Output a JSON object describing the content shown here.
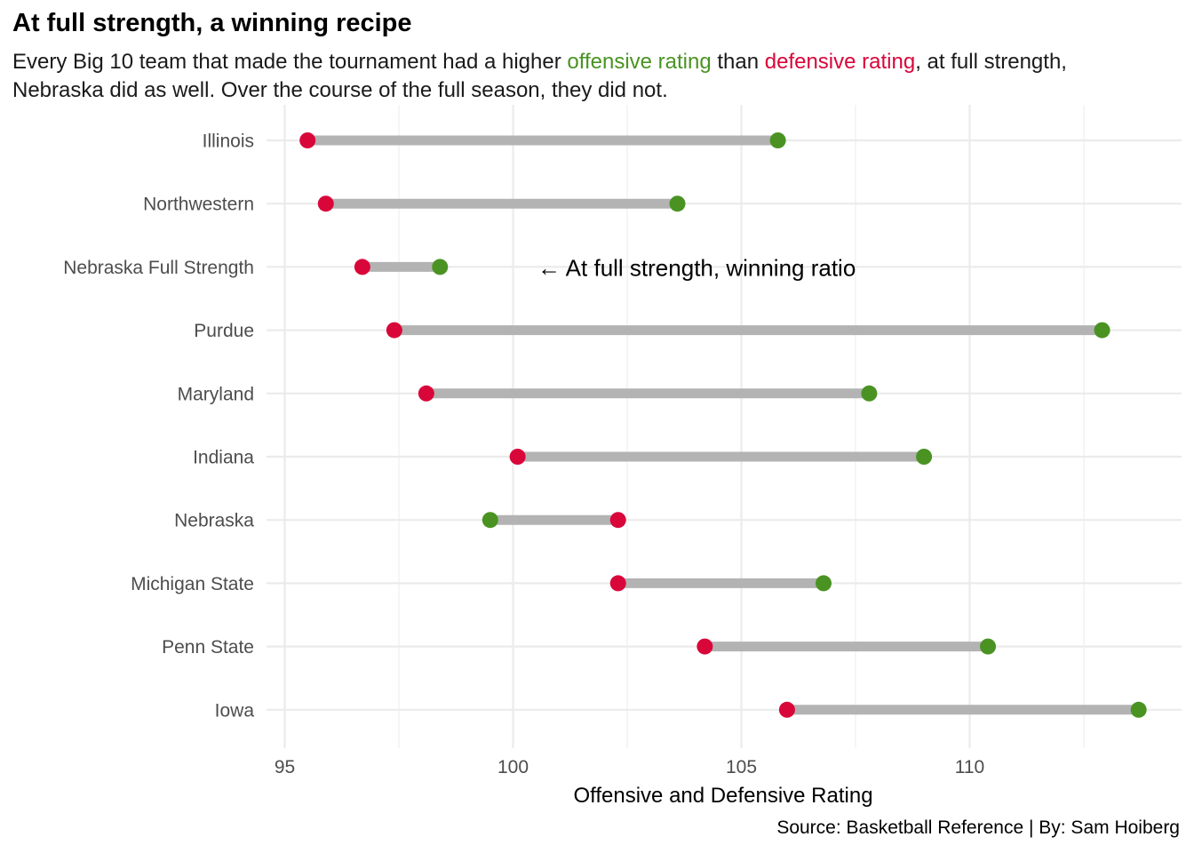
{
  "title": "At full strength, a winning recipe",
  "subtitle": {
    "part1": "Every Big 10 team that made the tournament had a higher ",
    "offensive": "offensive rating",
    "part2": " than ",
    "defensive": "defensive rating",
    "part3": ", at full strength, Nebraska did as well. Over the course of the full season, they did not."
  },
  "caption": "Source: Basketball Reference | By: Sam Hoiberg",
  "colors": {
    "offensive": "#4a9323",
    "defensive": "#d9063a",
    "segment": "#b3b3b3",
    "grid": "#ebebeb"
  },
  "chart_data": {
    "type": "dumbbell",
    "xlabel": "Offensive and Defensive Rating",
    "xlim": [
      94.6,
      114.3
    ],
    "xticks": [
      95,
      100,
      105,
      110
    ],
    "annotation": {
      "text": "← At full strength, winning ratio",
      "x": 101.0,
      "team": "Nebraska Full Strength"
    },
    "teams": [
      {
        "team": "Illinois",
        "defensive": 95.5,
        "offensive": 105.8
      },
      {
        "team": "Northwestern",
        "defensive": 95.9,
        "offensive": 103.6
      },
      {
        "team": "Nebraska Full Strength",
        "defensive": 96.7,
        "offensive": 98.4
      },
      {
        "team": "Purdue",
        "defensive": 97.4,
        "offensive": 112.9
      },
      {
        "team": "Maryland",
        "defensive": 98.1,
        "offensive": 107.8
      },
      {
        "team": "Indiana",
        "defensive": 100.1,
        "offensive": 109.0
      },
      {
        "team": "Nebraska",
        "defensive": 102.3,
        "offensive": 99.5
      },
      {
        "team": "Michigan State",
        "defensive": 102.3,
        "offensive": 106.8
      },
      {
        "team": "Penn State",
        "defensive": 104.2,
        "offensive": 110.4
      },
      {
        "team": "Iowa",
        "defensive": 106.0,
        "offensive": 113.7
      }
    ]
  }
}
